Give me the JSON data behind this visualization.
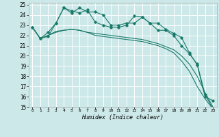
{
  "xlabel": "Humidex (Indice chaleur)",
  "bg_color": "#cce8e8",
  "grid_color": "#ffffff",
  "line_color": "#1a7a6a",
  "xlim": [
    -0.5,
    23.5
  ],
  "ylim": [
    15,
    25.2
  ],
  "xticks": [
    0,
    1,
    2,
    3,
    4,
    5,
    6,
    7,
    8,
    9,
    10,
    11,
    12,
    13,
    14,
    15,
    16,
    17,
    18,
    19,
    20,
    21,
    22,
    23
  ],
  "yticks": [
    15,
    16,
    17,
    18,
    19,
    20,
    21,
    22,
    23,
    24,
    25
  ],
  "series": [
    {
      "x": [
        0,
        1,
        2,
        3,
        4,
        5,
        6,
        7,
        8,
        9,
        10,
        11,
        12,
        13,
        14,
        15,
        16,
        17,
        18,
        19,
        20,
        21,
        22,
        23
      ],
      "y": [
        22.8,
        21.7,
        21.9,
        23.2,
        24.7,
        24.2,
        24.7,
        24.3,
        24.3,
        24.0,
        23.0,
        23.0,
        23.2,
        23.2,
        23.8,
        23.2,
        23.2,
        22.6,
        22.2,
        21.8,
        20.3,
        19.1,
        16.0,
        15.6
      ],
      "marker": true
    },
    {
      "x": [
        0,
        1,
        2,
        3,
        4,
        5,
        6,
        7,
        8,
        9,
        10,
        11,
        12,
        13,
        14,
        15,
        16,
        17,
        18,
        19,
        20,
        21,
        22,
        23
      ],
      "y": [
        22.8,
        21.7,
        22.3,
        23.2,
        24.7,
        24.4,
        24.2,
        24.5,
        23.3,
        23.0,
        22.8,
        22.8,
        23.0,
        23.9,
        23.8,
        23.2,
        22.5,
        22.5,
        22.0,
        21.0,
        20.2,
        19.2,
        16.2,
        14.8
      ],
      "marker": true
    },
    {
      "x": [
        0,
        1,
        2,
        3,
        4,
        5,
        6,
        7,
        8,
        9,
        10,
        11,
        12,
        13,
        14,
        15,
        16,
        17,
        18,
        19,
        20,
        21,
        22,
        23
      ],
      "y": [
        22.8,
        21.7,
        22.0,
        22.4,
        22.5,
        22.6,
        22.5,
        22.3,
        22.2,
        22.1,
        22.0,
        21.9,
        21.8,
        21.7,
        21.6,
        21.4,
        21.2,
        20.9,
        20.6,
        20.0,
        19.2,
        18.0,
        16.4,
        15.0
      ],
      "marker": false
    },
    {
      "x": [
        0,
        1,
        2,
        3,
        4,
        5,
        6,
        7,
        8,
        9,
        10,
        11,
        12,
        13,
        14,
        15,
        16,
        17,
        18,
        19,
        20,
        21,
        22,
        23
      ],
      "y": [
        22.8,
        21.7,
        22.0,
        22.3,
        22.5,
        22.6,
        22.5,
        22.3,
        22.0,
        21.9,
        21.8,
        21.7,
        21.6,
        21.5,
        21.4,
        21.2,
        21.0,
        20.7,
        20.3,
        19.5,
        18.5,
        17.0,
        15.8,
        14.8
      ],
      "marker": false
    }
  ]
}
